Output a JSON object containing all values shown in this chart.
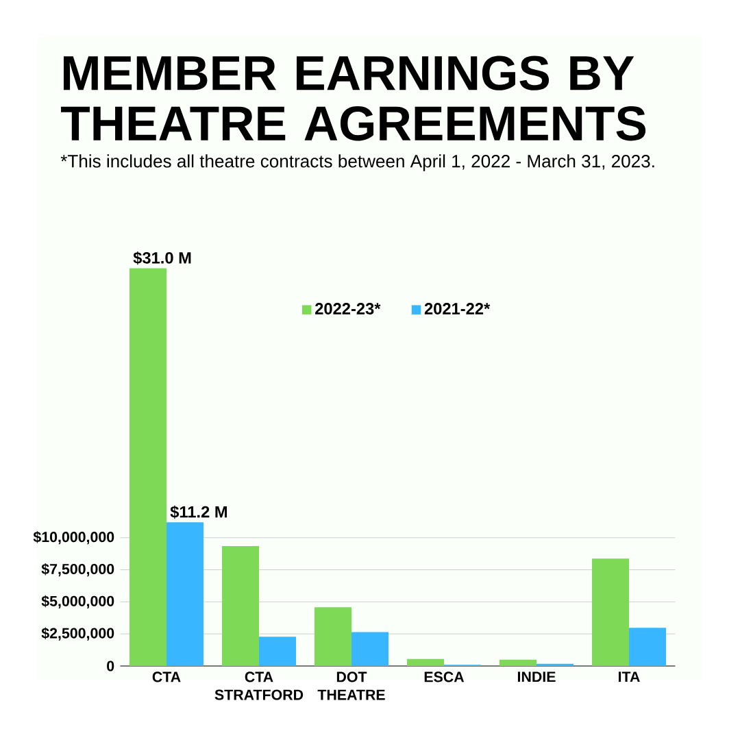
{
  "chart_data": {
    "type": "bar",
    "title": "MEMBER EARNINGS BY THEATRE AGREEMENTS",
    "subtitle": "*This includes all theatre contracts between April 1, 2022 - March 31, 2023.",
    "categories": [
      "CTA",
      "CTA STRATFORD",
      "DOT THEATRE",
      "ESCA",
      "INDIE",
      "ITA"
    ],
    "series": [
      {
        "name": "2022-23*",
        "color": "#7ed957",
        "values": [
          31000000,
          9350000,
          4580000,
          550000,
          490000,
          8370000
        ],
        "value_labels": [
          "$31.0 M",
          null,
          null,
          null,
          null,
          null
        ]
      },
      {
        "name": "2021-22*",
        "color": "#38b6ff",
        "values": [
          11200000,
          2280000,
          2650000,
          90000,
          180000,
          2980000
        ],
        "value_labels": [
          "$11.2 M",
          null,
          null,
          null,
          null,
          null
        ]
      }
    ],
    "ylim": [
      0,
      31000000
    ],
    "yticks": [
      0,
      {
        "value": 2500000,
        "label": "$2,500,000"
      },
      {
        "value": 5000000,
        "label": "$5,000,000"
      },
      {
        "value": 7500000,
        "label": "$7,500,000"
      },
      {
        "value": 10000000,
        "label": "$10,000,000"
      }
    ],
    "grid": "y",
    "legend": "top"
  }
}
